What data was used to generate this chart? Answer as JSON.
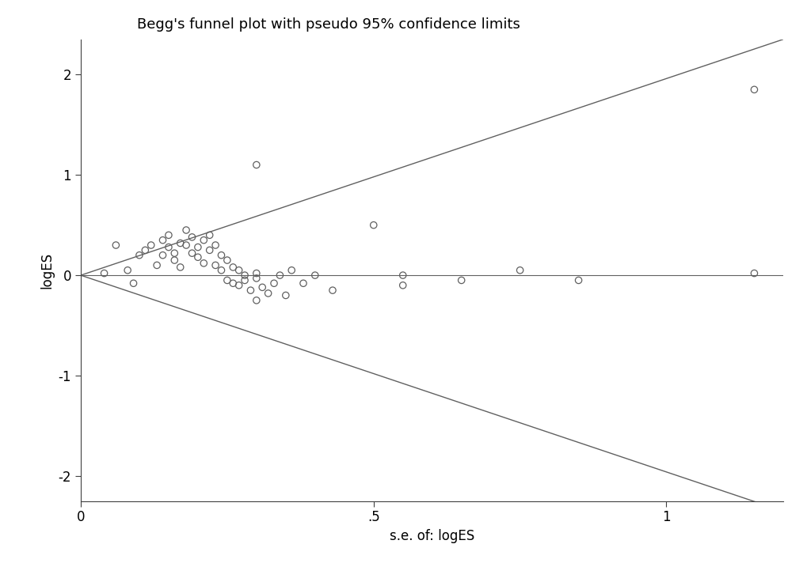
{
  "title": "Begg's funnel plot with pseudo 95% confidence limits",
  "xlabel": "s.e. of: logES",
  "ylabel": "logES",
  "xlim": [
    0,
    1.2
  ],
  "ylim": [
    -2.25,
    2.35
  ],
  "xticks": [
    0,
    0.5,
    1.0
  ],
  "xticklabels": [
    "0",
    ".5",
    "1"
  ],
  "yticks": [
    -2,
    -1,
    0,
    1,
    2
  ],
  "yticklabels": [
    "-2",
    "-1",
    "0",
    "1",
    "2"
  ],
  "points_x": [
    0.04,
    0.06,
    0.08,
    0.09,
    0.1,
    0.11,
    0.12,
    0.13,
    0.14,
    0.14,
    0.15,
    0.15,
    0.16,
    0.16,
    0.17,
    0.17,
    0.18,
    0.18,
    0.19,
    0.19,
    0.2,
    0.2,
    0.21,
    0.21,
    0.22,
    0.22,
    0.23,
    0.23,
    0.24,
    0.24,
    0.25,
    0.25,
    0.26,
    0.26,
    0.27,
    0.27,
    0.28,
    0.28,
    0.29,
    0.3,
    0.3,
    0.31,
    0.32,
    0.33,
    0.34,
    0.35,
    0.36,
    0.38,
    0.4,
    0.43,
    0.3,
    0.5,
    0.55,
    0.3,
    0.55,
    0.65,
    0.75,
    0.85,
    1.15,
    1.15
  ],
  "points_y": [
    0.02,
    0.3,
    0.05,
    -0.08,
    0.2,
    0.25,
    0.3,
    0.1,
    0.35,
    0.2,
    0.28,
    0.4,
    0.22,
    0.15,
    0.32,
    0.08,
    0.45,
    0.3,
    0.38,
    0.22,
    0.28,
    0.18,
    0.35,
    0.12,
    0.4,
    0.25,
    0.3,
    0.1,
    0.2,
    0.05,
    0.15,
    -0.05,
    0.08,
    -0.08,
    0.05,
    -0.1,
    0.0,
    -0.05,
    -0.15,
    -0.03,
    0.02,
    -0.12,
    -0.18,
    -0.08,
    0.0,
    -0.2,
    0.05,
    -0.08,
    0.0,
    -0.15,
    1.1,
    0.5,
    0.0,
    -0.25,
    -0.1,
    -0.05,
    0.05,
    -0.05,
    1.85,
    0.02
  ],
  "funnel_se_upper": [
    0.0,
    1.2
  ],
  "funnel_upper": [
    0.0,
    2.352
  ],
  "funnel_lower": [
    0.0,
    -2.352
  ],
  "funnel_color": "#606060",
  "marker_facecolor": "none",
  "marker_edgecolor": "#606060",
  "marker_size": 6,
  "hline_color": "#606060",
  "background_color": "#ffffff",
  "title_fontsize": 13,
  "axis_label_fontsize": 12,
  "tick_fontsize": 12
}
